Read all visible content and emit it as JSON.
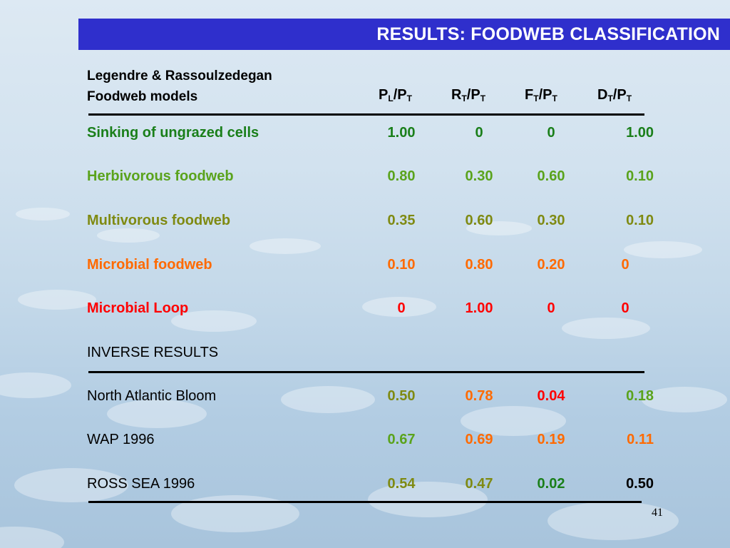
{
  "title": "RESULTS: FOODWEB CLASSIFICATION",
  "header": {
    "line1": "Legendre & Rassoulzedegan",
    "line2": "Foodweb models"
  },
  "columns": [
    {
      "main": "P",
      "sub1": "L",
      "slash": "/P",
      "sub2": "T"
    },
    {
      "main": "R",
      "sub1": "T",
      "slash": "/P",
      "sub2": "T"
    },
    {
      "main": "F",
      "sub1": "T",
      "slash": "/P",
      "sub2": "T"
    },
    {
      "main": "D",
      "sub1": "T",
      "slash": "/P",
      "sub2": "T"
    }
  ],
  "models": [
    {
      "label": "Sinking of ungrazed cells",
      "color": "#1a7f1a",
      "values": [
        "1.00",
        "0",
        "0",
        "1.00"
      ]
    },
    {
      "label": "Herbivorous foodweb",
      "color": "#5aa31c",
      "values": [
        "0.80",
        "0.30",
        "0.60",
        "0.10"
      ]
    },
    {
      "label": "Multivorous foodweb",
      "color": "#7f8a12",
      "values": [
        "0.35",
        "0.60",
        "0.30",
        "0.10"
      ]
    },
    {
      "label": "Microbial foodweb",
      "color": "#ff6a00",
      "values": [
        "0.10",
        "0.80",
        "0.20",
        "0"
      ]
    },
    {
      "label": "Microbial Loop",
      "color": "#ff0000",
      "values": [
        "0",
        "1.00",
        "0",
        "0"
      ]
    }
  ],
  "inverse_heading": "INVERSE RESULTS",
  "inverse": [
    {
      "label": "North Atlantic Bloom",
      "values": [
        {
          "v": "0.50",
          "color": "#7f8a12"
        },
        {
          "v": "0.78",
          "color": "#ff6a00"
        },
        {
          "v": "0.04",
          "color": "#ff0000"
        },
        {
          "v": "0.18",
          "color": "#5aa31c"
        }
      ]
    },
    {
      "label": "WAP 1996",
      "values": [
        {
          "v": "0.67",
          "color": "#5aa31c"
        },
        {
          "v": "0.69",
          "color": "#ff6a00"
        },
        {
          "v": "0.19",
          "color": "#ff6a00"
        },
        {
          "v": "0.11",
          "color": "#ff6a00"
        }
      ]
    },
    {
      "label": "ROSS SEA 1996",
      "values": [
        {
          "v": "0.54",
          "color": "#7f8a12"
        },
        {
          "v": "0.47",
          "color": "#7f8a12"
        },
        {
          "v": "0.02",
          "color": "#1a7f1a"
        },
        {
          "v": "0.50",
          "color": "#000000"
        }
      ]
    }
  ],
  "page_number": "41"
}
